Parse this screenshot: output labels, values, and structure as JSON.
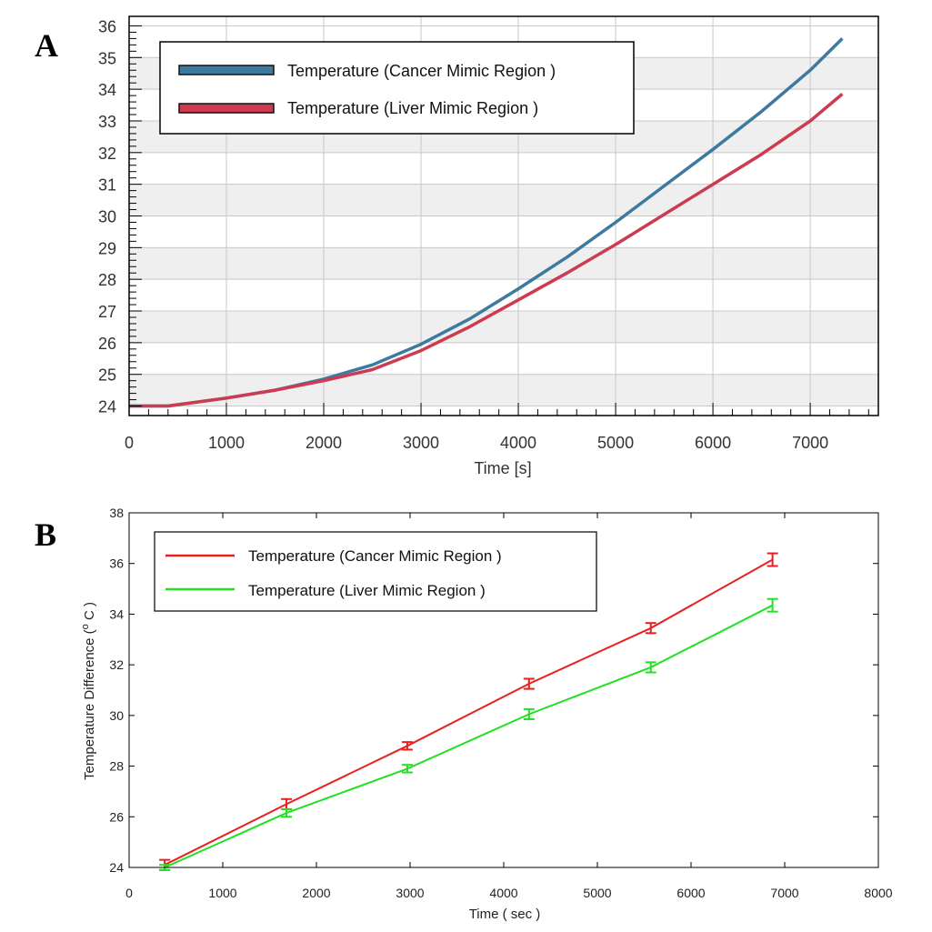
{
  "panels": {
    "a_label": "A",
    "b_label": "B"
  },
  "chart_data": [
    {
      "type": "line",
      "panel": "A",
      "title": "",
      "xlabel": "Time [s]",
      "ylabel": "",
      "xlim": [
        0,
        7700
      ],
      "ylim": [
        23.7,
        36.3
      ],
      "xticks": [
        0,
        1000,
        2000,
        3000,
        4000,
        5000,
        6000,
        7000
      ],
      "yticks": [
        24,
        25,
        26,
        27,
        28,
        29,
        30,
        31,
        32,
        33,
        34,
        35,
        36
      ],
      "x": [
        0,
        400,
        1000,
        1500,
        2000,
        2500,
        3000,
        3500,
        4000,
        4500,
        5000,
        5500,
        6000,
        6500,
        7000,
        7330
      ],
      "series": [
        {
          "name": "Temperature (Cancer Mimic Region )",
          "color": "#3d7aa0",
          "values": [
            24.0,
            24.0,
            24.25,
            24.5,
            24.85,
            25.3,
            25.95,
            26.75,
            27.7,
            28.7,
            29.8,
            30.95,
            32.1,
            33.3,
            34.6,
            35.6
          ]
        },
        {
          "name": "Temperature (Liver Mimic Region )",
          "color": "#cc3b50",
          "values": [
            24.0,
            24.0,
            24.25,
            24.5,
            24.8,
            25.15,
            25.75,
            26.5,
            27.35,
            28.2,
            29.1,
            30.05,
            31.0,
            31.95,
            33.0,
            33.85
          ]
        }
      ],
      "legend": "top-left",
      "grid": true
    },
    {
      "type": "line",
      "panel": "B",
      "title": "",
      "xlabel": "Time ( sec )",
      "ylabel": "Temperature Difference (°C)",
      "ylabel_base": "Temperature Difference (",
      "ylabel_sup": "o",
      "ylabel_unit": " C )",
      "xlim": [
        0,
        8000
      ],
      "ylim": [
        24,
        38
      ],
      "xticks": [
        0,
        1000,
        2000,
        3000,
        4000,
        5000,
        6000,
        7000,
        8000
      ],
      "yticks": [
        24,
        26,
        28,
        30,
        32,
        34,
        36,
        38
      ],
      "x": [
        380,
        1680,
        2970,
        4270,
        5570,
        6870
      ],
      "series": [
        {
          "name": "Temperature (Cancer Mimic Region )",
          "color": "#e82020",
          "values": [
            24.1,
            26.5,
            28.8,
            31.25,
            33.45,
            36.15
          ],
          "errors": [
            0.2,
            0.2,
            0.15,
            0.2,
            0.2,
            0.25
          ]
        },
        {
          "name": "Temperature (Liver Mimic Region )",
          "color": "#22e022",
          "values": [
            24.0,
            26.15,
            27.9,
            30.05,
            31.9,
            34.35
          ],
          "errors": [
            0.1,
            0.15,
            0.15,
            0.2,
            0.2,
            0.25
          ]
        }
      ],
      "legend": "top-left",
      "grid": false
    }
  ]
}
